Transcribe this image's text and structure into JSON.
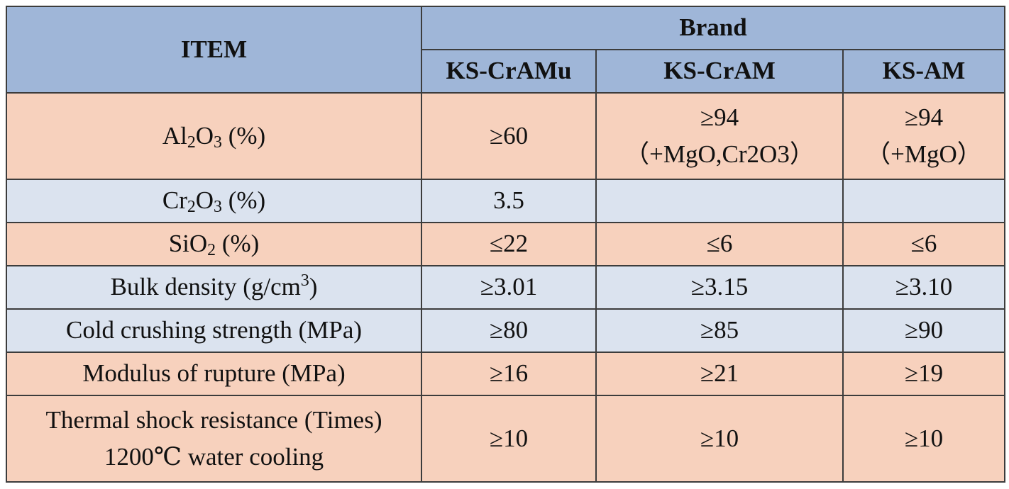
{
  "header": {
    "item_label": "ITEM",
    "brand_label": "Brand",
    "brands": [
      "KS-CrAMu",
      "KS-CrAM",
      "KS-AM"
    ]
  },
  "rows": [
    {
      "item": {
        "pre": "Al",
        "sub1": "2",
        "mid": "O",
        "sub2": "3",
        "post": " (%)"
      },
      "values": [
        {
          "main": "≥60",
          "note": ""
        },
        {
          "main": "≥94",
          "note": "（+MgO,Cr2O3）"
        },
        {
          "main": "≥94",
          "note": "（+MgO）"
        }
      ]
    },
    {
      "item": {
        "pre": "Cr",
        "sub1": "2",
        "mid": "O",
        "sub2": "3",
        "post": " (%)"
      },
      "values": [
        {
          "main": "3.5"
        },
        {
          "main": ""
        },
        {
          "main": ""
        }
      ]
    },
    {
      "item": {
        "pre": "SiO",
        "sub1": "2",
        "post": " (%)"
      },
      "values": [
        {
          "main": "≤22"
        },
        {
          "main": "≤6"
        },
        {
          "main": "≤6"
        }
      ]
    },
    {
      "item": {
        "pre": "Bulk density (g/cm",
        "sup": "3",
        "post": ")"
      },
      "values": [
        {
          "main": "≥3.01"
        },
        {
          "main": "≥3.15"
        },
        {
          "main": "≥3.10"
        }
      ]
    },
    {
      "item": {
        "text": "Cold crushing strength (MPa)"
      },
      "values": [
        {
          "main": "≥80"
        },
        {
          "main": "≥85"
        },
        {
          "main": "≥90"
        }
      ]
    },
    {
      "item": {
        "text": "Modulus of rupture (MPa)"
      },
      "values": [
        {
          "main": "≥16"
        },
        {
          "main": "≥21"
        },
        {
          "main": "≥19"
        }
      ]
    },
    {
      "item": {
        "line1": "Thermal shock resistance (Times)",
        "line2": "1200℃ water cooling"
      },
      "values": [
        {
          "main": "≥10"
        },
        {
          "main": "≥10"
        },
        {
          "main": "≥10"
        }
      ]
    }
  ]
}
